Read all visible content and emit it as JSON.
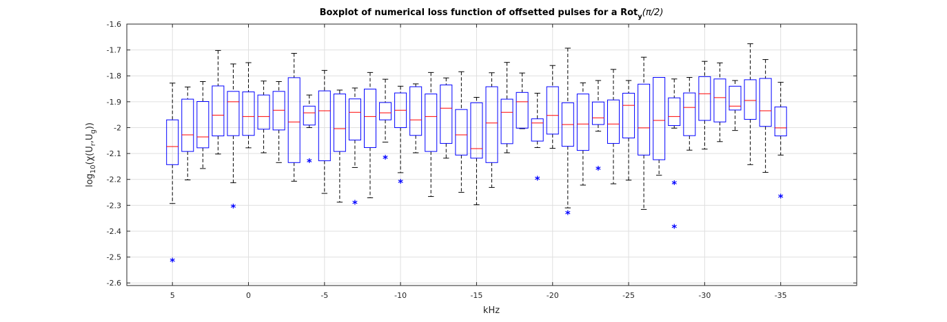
{
  "chart_data": {
    "type": "boxplot",
    "title_main": "Boxplot of numerical loss function of offsetted pulses for a Rot",
    "title_sub": "y",
    "title_tail": "(π/2)",
    "xlabel": "kHz",
    "ylabel_parts": [
      "log",
      "10",
      "(χ(U",
      "r",
      ",U",
      "g",
      "))"
    ],
    "xlim": [
      8,
      -40
    ],
    "ylim": [
      -2.61,
      -1.6
    ],
    "xticks": [
      5,
      0,
      -5,
      -10,
      -15,
      -20,
      -25,
      -30,
      -35
    ],
    "xtick_labels": [
      "5",
      "0",
      "-5",
      "-10",
      "-15",
      "-20",
      "-25",
      "-30",
      "-35"
    ],
    "yticks": [
      -1.6,
      -1.7,
      -1.8,
      -1.9,
      -2.0,
      -2.1,
      -2.2,
      -2.3,
      -2.4,
      -2.5,
      -2.6
    ],
    "ytick_labels": [
      "-1.6",
      "-1.7",
      "-1.8",
      "-1.9",
      "-2",
      "-2.1",
      "-2.2",
      "-2.3",
      "-2.4",
      "-2.5",
      "-2.6"
    ],
    "grid": true,
    "boxes": [
      {
        "x": 5,
        "q1": -2.143,
        "median": -2.073,
        "q3": -1.97,
        "low": -2.293,
        "high": -1.828,
        "outliers": [
          -2.515
        ]
      },
      {
        "x": 4,
        "q1": -2.092,
        "median": -2.028,
        "q3": -1.89,
        "low": -2.202,
        "high": -1.843,
        "outliers": []
      },
      {
        "x": 3,
        "q1": -2.078,
        "median": -2.036,
        "q3": -1.899,
        "low": -2.158,
        "high": -1.822,
        "outliers": []
      },
      {
        "x": 2,
        "q1": -2.032,
        "median": -1.952,
        "q3": -1.839,
        "low": -2.102,
        "high": -1.702,
        "outliers": []
      },
      {
        "x": 1,
        "q1": -2.031,
        "median": -1.9,
        "q3": -1.86,
        "low": -2.213,
        "high": -1.754,
        "outliers": [
          -2.307
        ]
      },
      {
        "x": 0,
        "q1": -2.03,
        "median": -1.957,
        "q3": -1.862,
        "low": -2.078,
        "high": -1.749,
        "outliers": []
      },
      {
        "x": -1,
        "q1": -2.006,
        "median": -1.957,
        "q3": -1.874,
        "low": -2.097,
        "high": -1.82,
        "outliers": []
      },
      {
        "x": -2,
        "q1": -2.009,
        "median": -1.933,
        "q3": -1.86,
        "low": -2.135,
        "high": -1.822,
        "outliers": []
      },
      {
        "x": -3,
        "q1": -2.135,
        "median": -1.978,
        "q3": -1.807,
        "low": -2.207,
        "high": -1.713,
        "outliers": []
      },
      {
        "x": -4,
        "q1": -1.99,
        "median": -1.943,
        "q3": -1.917,
        "low": -2.0,
        "high": -1.874,
        "outliers": [
          -2.132
        ]
      },
      {
        "x": -5,
        "q1": -2.128,
        "median": -1.935,
        "q3": -1.858,
        "low": -2.254,
        "high": -1.779,
        "outliers": []
      },
      {
        "x": -6,
        "q1": -2.092,
        "median": -2.004,
        "q3": -1.87,
        "low": -2.288,
        "high": -1.855,
        "outliers": []
      },
      {
        "x": -7,
        "q1": -2.048,
        "median": -1.941,
        "q3": -1.889,
        "low": -2.154,
        "high": -1.847,
        "outliers": [
          -2.292
        ]
      },
      {
        "x": -8,
        "q1": -2.077,
        "median": -1.957,
        "q3": -1.851,
        "low": -2.271,
        "high": -1.787,
        "outliers": []
      },
      {
        "x": -9,
        "q1": -1.97,
        "median": -1.943,
        "q3": -1.903,
        "low": -2.056,
        "high": -1.813,
        "outliers": [
          -2.118
        ]
      },
      {
        "x": -10,
        "q1": -2.0,
        "median": -1.933,
        "q3": -1.866,
        "low": -2.174,
        "high": -1.84,
        "outliers": [
          -2.211
        ]
      },
      {
        "x": -11,
        "q1": -2.03,
        "median": -1.97,
        "q3": -1.842,
        "low": -2.097,
        "high": -1.831,
        "outliers": []
      },
      {
        "x": -12,
        "q1": -2.092,
        "median": -1.957,
        "q3": -1.87,
        "low": -2.266,
        "high": -1.787,
        "outliers": []
      },
      {
        "x": -13,
        "q1": -2.061,
        "median": -1.925,
        "q3": -1.835,
        "low": -2.118,
        "high": -1.808,
        "outliers": []
      },
      {
        "x": -14,
        "q1": -2.106,
        "median": -2.028,
        "q3": -1.93,
        "low": -2.25,
        "high": -1.784,
        "outliers": []
      },
      {
        "x": -15,
        "q1": -2.118,
        "median": -2.081,
        "q3": -1.904,
        "low": -2.298,
        "high": -1.883,
        "outliers": []
      },
      {
        "x": -16,
        "q1": -2.135,
        "median": -1.982,
        "q3": -1.842,
        "low": -2.231,
        "high": -1.788,
        "outliers": []
      },
      {
        "x": -17,
        "q1": -2.062,
        "median": -1.941,
        "q3": -1.89,
        "low": -2.097,
        "high": -1.748,
        "outliers": []
      },
      {
        "x": -18,
        "q1": -2.002,
        "median": -1.9,
        "q3": -1.864,
        "low": -2.004,
        "high": -1.789,
        "outliers": []
      },
      {
        "x": -19,
        "q1": -2.052,
        "median": -1.982,
        "q3": -1.966,
        "low": -2.077,
        "high": -1.867,
        "outliers": [
          -2.2
        ]
      },
      {
        "x": -20,
        "q1": -2.025,
        "median": -1.953,
        "q3": -1.842,
        "low": -2.08,
        "high": -1.76,
        "outliers": []
      },
      {
        "x": -21,
        "q1": -2.072,
        "median": -1.988,
        "q3": -1.904,
        "low": -2.31,
        "high": -1.693,
        "outliers": [
          -2.332
        ]
      },
      {
        "x": -22,
        "q1": -2.088,
        "median": -1.986,
        "q3": -1.87,
        "low": -2.222,
        "high": -1.827,
        "outliers": []
      },
      {
        "x": -23,
        "q1": -1.988,
        "median": -1.962,
        "q3": -1.901,
        "low": -2.014,
        "high": -1.818,
        "outliers": [
          -2.161
        ]
      },
      {
        "x": -24,
        "q1": -2.061,
        "median": -1.986,
        "q3": -1.893,
        "low": -2.217,
        "high": -1.775,
        "outliers": []
      },
      {
        "x": -25,
        "q1": -2.04,
        "median": -1.914,
        "q3": -1.867,
        "low": -2.203,
        "high": -1.818,
        "outliers": []
      },
      {
        "x": -26,
        "q1": -2.106,
        "median": -2.001,
        "q3": -1.832,
        "low": -2.316,
        "high": -1.728,
        "outliers": []
      },
      {
        "x": -27,
        "q1": -2.124,
        "median": -1.972,
        "q3": -1.806,
        "low": -2.184,
        "high": -1.806,
        "outliers": []
      },
      {
        "x": -28,
        "q1": -1.992,
        "median": -1.957,
        "q3": -1.885,
        "low": -2.002,
        "high": -1.812,
        "outliers": [
          -2.216,
          -2.386
        ]
      },
      {
        "x": -29,
        "q1": -2.031,
        "median": -1.922,
        "q3": -1.866,
        "low": -2.087,
        "high": -1.806,
        "outliers": []
      },
      {
        "x": -30,
        "q1": -1.972,
        "median": -1.869,
        "q3": -1.803,
        "low": -2.083,
        "high": -1.744,
        "outliers": []
      },
      {
        "x": -31,
        "q1": -1.978,
        "median": -1.884,
        "q3": -1.812,
        "low": -2.054,
        "high": -1.75,
        "outliers": []
      },
      {
        "x": -32,
        "q1": -1.932,
        "median": -1.917,
        "q3": -1.84,
        "low": -2.011,
        "high": -1.818,
        "outliers": []
      },
      {
        "x": -33,
        "q1": -1.968,
        "median": -1.895,
        "q3": -1.815,
        "low": -2.143,
        "high": -1.676,
        "outliers": []
      },
      {
        "x": -34,
        "q1": -1.995,
        "median": -1.935,
        "q3": -1.81,
        "low": -2.173,
        "high": -1.737,
        "outliers": []
      },
      {
        "x": -35,
        "q1": -2.032,
        "median": -2.001,
        "q3": -1.92,
        "low": -2.106,
        "high": -1.825,
        "outliers": [
          -2.269
        ]
      }
    ]
  }
}
